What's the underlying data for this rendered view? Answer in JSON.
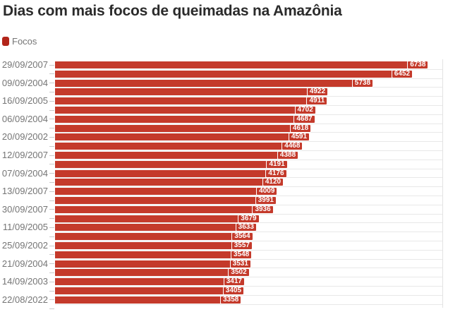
{
  "chart_data": {
    "type": "bar",
    "orientation": "horizontal",
    "title": "Dias com mais focos de queimadas na Amazônia",
    "series_name": "Focos",
    "xlabel": "",
    "ylabel": "",
    "xlim": [
      0,
      7000
    ],
    "legend_position": "top-left",
    "grid": "one light horizontal line per category row, light vertical line at right plot edge",
    "value_labels": "white bold numbers in red boxes at bar ends",
    "categories": [
      "29/09/2007",
      "",
      "09/09/2004",
      "",
      "16/09/2005",
      "",
      "06/09/2004",
      "",
      "20/09/2002",
      "",
      "12/09/2007",
      "",
      "07/09/2004",
      "",
      "13/09/2007",
      "",
      "30/09/2007",
      "",
      "11/09/2005",
      "",
      "25/09/2002",
      "",
      "21/09/2004",
      "",
      "14/09/2003",
      "",
      "22/08/2022"
    ],
    "values": [
      6738,
      6452,
      5738,
      4922,
      4911,
      4702,
      4687,
      4618,
      4591,
      4468,
      4388,
      4191,
      4176,
      4120,
      4009,
      3991,
      3936,
      3679,
      3633,
      3564,
      3557,
      3548,
      3531,
      3502,
      3417,
      3405,
      3358
    ]
  },
  "colors": {
    "bar": "#c43a2b",
    "marker": "#b2251a",
    "title": "#2b2b2b",
    "label": "#757575",
    "grid": "#e8e8e8",
    "tick": "#c9c9c9",
    "edge": "#e3e3e3",
    "value": "#ffffff"
  }
}
